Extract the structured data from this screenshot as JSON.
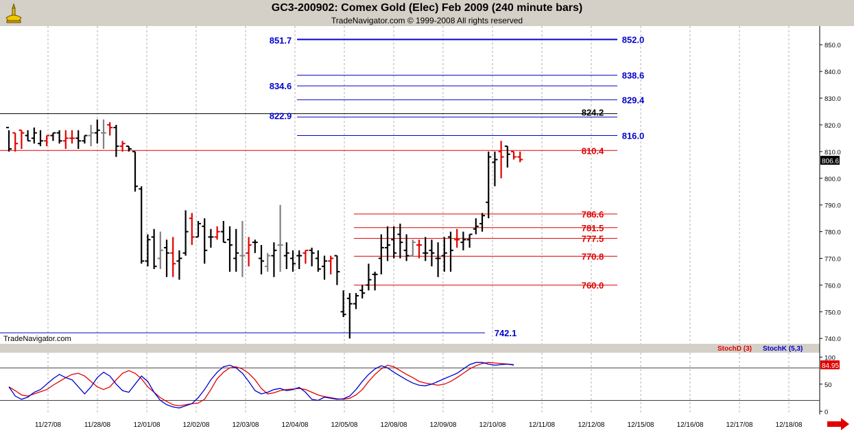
{
  "window": {
    "title": "GC3-200902:  Comex Gold (Elec) Feb 2009  (240 minute bars)",
    "subtitle": "TradeNavigator.com © 1999-2008 All rights reserved",
    "watermark": "TradeNavigator.com"
  },
  "colors": {
    "up_bar": "#000000",
    "down_bar": "#e00000",
    "neutral_bar": "#808080",
    "blue_level": "#0000cc",
    "red_level": "#e00000",
    "stoch_d": "#e00000",
    "stoch_k": "#0000cc"
  },
  "chart_data": [
    {
      "type": "ohlc",
      "title": "GC3-200902:  Comex Gold (Elec) Feb 2009  (240 minute bars)",
      "ylim": [
        738,
        857
      ],
      "yticks": [
        "740.0",
        "750.0",
        "760.0",
        "770.0",
        "780.0",
        "790.0",
        "800.0",
        "810.0",
        "820.0",
        "830.0",
        "840.0",
        "850.0"
      ],
      "last_price": "806.6",
      "xtick_labels": [
        "11/27/08",
        "11/28/08",
        "12/01/08",
        "12/02/08",
        "12/03/08",
        "12/04/08",
        "12/05/08",
        "12/08/08",
        "12/09/08",
        "12/10/08",
        "12/11/08",
        "12/12/08",
        "12/15/08",
        "12/16/08",
        "12/17/08",
        "12/18/08"
      ],
      "bars": [
        [
          819,
          818,
          810,
          811
        ],
        [
          817,
          817,
          810,
          813
        ],
        [
          818,
          818,
          811,
          817
        ],
        [
          816,
          818,
          814,
          814
        ],
        [
          815,
          819,
          813,
          817
        ],
        [
          813,
          818,
          812,
          814
        ],
        [
          814,
          816,
          812,
          816
        ],
        [
          816,
          817,
          814,
          817
        ],
        [
          817,
          818,
          813,
          814
        ],
        [
          814,
          818,
          811,
          815
        ],
        [
          815,
          818,
          813,
          815
        ],
        [
          815,
          818,
          811,
          814
        ],
        [
          814,
          816,
          813,
          816
        ],
        [
          816,
          820,
          812,
          817
        ],
        [
          817,
          822,
          813,
          818
        ],
        [
          817,
          822,
          811,
          817
        ],
        [
          820,
          821,
          816,
          819
        ],
        [
          819,
          820,
          808,
          812
        ],
        [
          812,
          814,
          810,
          813
        ],
        [
          812,
          812,
          810,
          811
        ],
        [
          810,
          810,
          795,
          797
        ],
        [
          796,
          797,
          768,
          769
        ],
        [
          769,
          779,
          767,
          777
        ],
        [
          778,
          781,
          766,
          767
        ],
        [
          770,
          780,
          766,
          773
        ],
        [
          774,
          777,
          763,
          772
        ],
        [
          772,
          778,
          763,
          768
        ],
        [
          769,
          773,
          762,
          770
        ],
        [
          772,
          788,
          771,
          780
        ],
        [
          785,
          787,
          775,
          778
        ],
        [
          778,
          784,
          778,
          783
        ],
        [
          782,
          785,
          768,
          773
        ],
        [
          778,
          781,
          774,
          778
        ],
        [
          778,
          782,
          777,
          780
        ],
        [
          780,
          784,
          776,
          776
        ],
        [
          777,
          782,
          765,
          775
        ],
        [
          770,
          781,
          765,
          772
        ],
        [
          771,
          784,
          763,
          771
        ],
        [
          772,
          778,
          767,
          775
        ],
        [
          776,
          777,
          772,
          776
        ],
        [
          770,
          775,
          764,
          769
        ],
        [
          767,
          772,
          765,
          771
        ],
        [
          771,
          776,
          763,
          773
        ],
        [
          775,
          790,
          765,
          775
        ],
        [
          771,
          776,
          766,
          772
        ],
        [
          770,
          773,
          765,
          768
        ],
        [
          771,
          773,
          766,
          771
        ],
        [
          772,
          773,
          768,
          773
        ],
        [
          773,
          774,
          767,
          772
        ],
        [
          770,
          773,
          765,
          766
        ],
        [
          767,
          771,
          762,
          769
        ],
        [
          769,
          771,
          764,
          770
        ],
        [
          771,
          771,
          760,
          765
        ],
        [
          750,
          758,
          748,
          749
        ],
        [
          755,
          757,
          740,
          753
        ],
        [
          753,
          757,
          751,
          756
        ],
        [
          758,
          760,
          755,
          757
        ],
        [
          760,
          768,
          758,
          762
        ],
        [
          764,
          765,
          758,
          764
        ],
        [
          770,
          779,
          764,
          774
        ],
        [
          774,
          782,
          769,
          775
        ],
        [
          777,
          782,
          770,
          772
        ],
        [
          779,
          783,
          770,
          776
        ],
        [
          773,
          779,
          769,
          771
        ],
        [
          771,
          777,
          771,
          776
        ],
        [
          775,
          777,
          770,
          775
        ],
        [
          772,
          778,
          769,
          772
        ],
        [
          773,
          777,
          767,
          772
        ],
        [
          770,
          776,
          763,
          770
        ],
        [
          771,
          778,
          765,
          772
        ],
        [
          778,
          780,
          765,
          773
        ],
        [
          777,
          781,
          774,
          777
        ],
        [
          776,
          780,
          773,
          777
        ],
        [
          777,
          779,
          774,
          779
        ],
        [
          781,
          785,
          779,
          782
        ],
        [
          783,
          787,
          780,
          786
        ],
        [
          791,
          810,
          785,
          808
        ],
        [
          806,
          810,
          797,
          807
        ],
        [
          810,
          814,
          800,
          808
        ],
        [
          812,
          812,
          804,
          809
        ],
        [
          810,
          810,
          807,
          808
        ],
        [
          808,
          810,
          806,
          807
        ]
      ],
      "bar_colors": [
        "up",
        "down",
        "down",
        "up",
        "up",
        "up",
        "down",
        "up",
        "up",
        "down",
        "down",
        "up",
        "up",
        "neutral",
        "up",
        "neutral",
        "down",
        "up",
        "down",
        "up",
        "up",
        "up",
        "up",
        "up",
        "neutral",
        "up",
        "down",
        "up",
        "up",
        "down",
        "up",
        "up",
        "up",
        "down",
        "up",
        "up",
        "up",
        "neutral",
        "down",
        "up",
        "up",
        "neutral",
        "up",
        "neutral",
        "up",
        "up",
        "up",
        "down",
        "up",
        "up",
        "up",
        "down",
        "up",
        "up",
        "up",
        "up",
        "up",
        "up",
        "up",
        "up",
        "up",
        "up",
        "up",
        "up",
        "neutral",
        "down",
        "up",
        "up",
        "up",
        "up",
        "up",
        "down",
        "up",
        "up",
        "up",
        "up",
        "up",
        "up",
        "down",
        "up",
        "down",
        "down"
      ],
      "levels": [
        {
          "value": 852.0,
          "label": "852.0",
          "color": "blue",
          "side": "right",
          "weight": "thick"
        },
        {
          "value": 851.7,
          "label": "851.7",
          "color": "blue",
          "side": "left",
          "weight": "none"
        },
        {
          "value": 838.6,
          "label": "838.6",
          "color": "blue",
          "side": "right"
        },
        {
          "value": 834.6,
          "label": "834.6",
          "color": "blue",
          "side": "left"
        },
        {
          "value": 829.4,
          "label": "829.4",
          "color": "blue",
          "side": "right"
        },
        {
          "value": 824.2,
          "label": "824.2",
          "color": "black",
          "side": "right"
        },
        {
          "value": 822.9,
          "label": "822.9",
          "color": "blue",
          "side": "left"
        },
        {
          "value": 816.0,
          "label": "816.0",
          "color": "blue",
          "side": "right"
        },
        {
          "value": 810.4,
          "label": "810.4",
          "color": "red",
          "side": "right"
        },
        {
          "value": 786.6,
          "label": "786.6",
          "color": "red",
          "side": "right"
        },
        {
          "value": 781.5,
          "label": "781.5",
          "color": "red",
          "side": "right"
        },
        {
          "value": 777.5,
          "label": "777.5",
          "color": "red",
          "side": "right"
        },
        {
          "value": 770.8,
          "label": "770.8",
          "color": "red",
          "side": "right"
        },
        {
          "value": 760.0,
          "label": "760.0",
          "color": "red",
          "side": "right"
        },
        {
          "value": 742.1,
          "label": "742.1",
          "color": "blue",
          "side": "right"
        }
      ]
    },
    {
      "type": "line",
      "title": "",
      "ylim": [
        -6,
        108
      ],
      "yticks": [
        "0",
        "50",
        "100"
      ],
      "reference_lines": [
        20,
        80
      ],
      "last_value": "84.95",
      "series": [
        {
          "name": "StochD (3)",
          "color": "red",
          "values": [
            45,
            38,
            30,
            28,
            32,
            36,
            40,
            48,
            55,
            62,
            68,
            70,
            65,
            55,
            45,
            40,
            45,
            58,
            70,
            75,
            70,
            60,
            45,
            35,
            25,
            18,
            12,
            10,
            12,
            14,
            15,
            22,
            40,
            60,
            72,
            80,
            82,
            78,
            70,
            58,
            42,
            32,
            34,
            38,
            40,
            41,
            42,
            40,
            35,
            30,
            27,
            25,
            23,
            22,
            24,
            30,
            40,
            55,
            68,
            78,
            85,
            82,
            75,
            68,
            62,
            55,
            52,
            50,
            48,
            50,
            55,
            62,
            70,
            78,
            84,
            88,
            90,
            89,
            88,
            87,
            86
          ]
        },
        {
          "name": "StochK (5,3)",
          "color": "blue",
          "values": [
            45,
            28,
            22,
            26,
            35,
            40,
            50,
            60,
            68,
            62,
            58,
            45,
            32,
            45,
            62,
            72,
            65,
            50,
            38,
            35,
            50,
            65,
            55,
            35,
            20,
            12,
            8,
            6,
            10,
            14,
            25,
            40,
            58,
            72,
            82,
            85,
            80,
            70,
            55,
            38,
            32,
            35,
            40,
            42,
            38,
            40,
            44,
            35,
            22,
            20,
            26,
            24,
            22,
            23,
            28,
            40,
            55,
            68,
            78,
            84,
            80,
            72,
            65,
            58,
            52,
            48,
            47,
            50,
            55,
            60,
            65,
            70,
            78,
            86,
            90,
            90,
            87,
            85,
            86,
            87,
            85
          ]
        }
      ]
    }
  ]
}
